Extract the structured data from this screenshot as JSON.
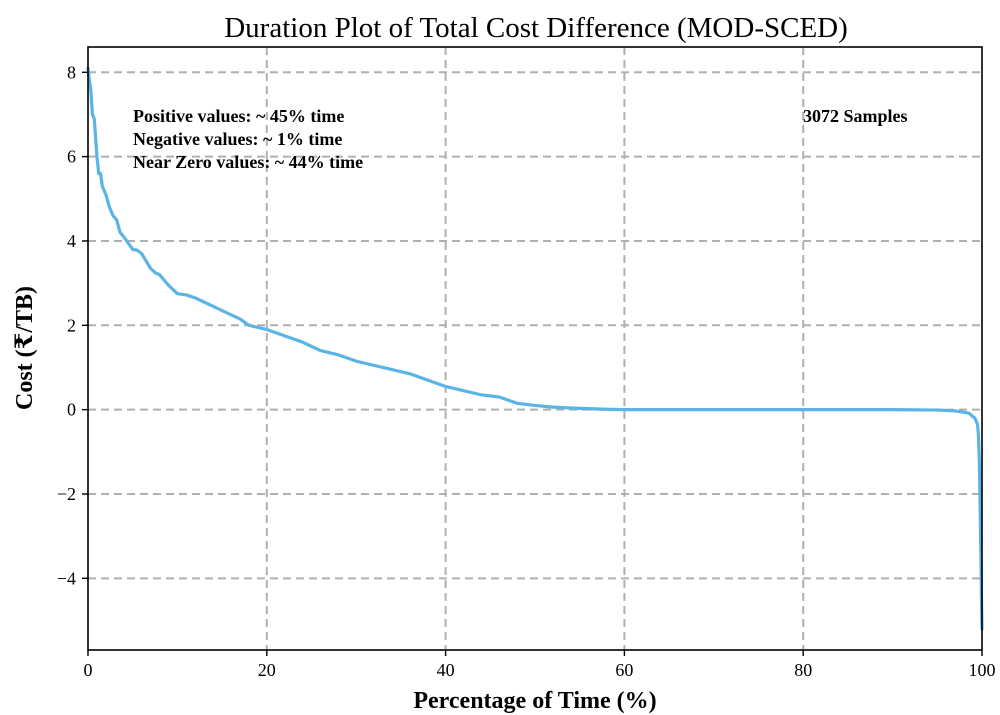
{
  "chart_data": {
    "type": "line",
    "title": "Duration Plot of Total Cost Difference (MOD-SCED)",
    "xlabel": "Percentage of Time (%)",
    "ylabel": "Cost (₹/TB)",
    "xlim": [
      0,
      100
    ],
    "ylim": [
      -5.7,
      8.6
    ],
    "xticks": [
      0,
      20,
      40,
      60,
      80,
      100
    ],
    "yticks": [
      -4,
      -2,
      0,
      2,
      4,
      6,
      8
    ],
    "xtick_labels": [
      "0",
      "20",
      "40",
      "60",
      "80",
      "100"
    ],
    "ytick_labels": [
      "−4",
      "−2",
      "0",
      "2",
      "4",
      "6",
      "8"
    ],
    "grid": true,
    "annotations": [
      "Positive values: ~ 45% time",
      "Negative values: ~ 1% time",
      "Near Zero values: ~ 44% time"
    ],
    "samples_label": "3072 Samples",
    "series": [
      {
        "color": "#5ab4e5",
        "x": [
          0,
          0.1,
          0.3,
          0.5,
          0.7,
          1.0,
          1.2,
          1.4,
          1.6,
          2.0,
          2.4,
          2.8,
          3.2,
          3.6,
          4.0,
          4.5,
          5.0,
          5.5,
          6.0,
          7.0,
          7.5,
          8.0,
          9.0,
          10.0,
          11.0,
          12.0,
          13.0,
          14.0,
          15.0,
          16.0,
          17.0,
          18.0,
          20.0,
          22.0,
          24.0,
          26.0,
          28.0,
          30.0,
          32.0,
          34.0,
          36.0,
          38.0,
          40.0,
          42.0,
          44.0,
          46.0,
          48.0,
          50.0,
          52.0,
          55.0,
          58.0,
          60.0,
          65.0,
          70.0,
          75.0,
          80.0,
          85.0,
          90.0,
          95.0,
          97.0,
          98.5,
          99.2,
          99.5,
          99.6,
          99.7,
          99.8,
          99.9,
          99.95,
          100.0
        ],
        "y": [
          8.1,
          7.9,
          7.6,
          7.0,
          6.9,
          6.0,
          5.6,
          5.6,
          5.3,
          5.1,
          4.8,
          4.6,
          4.5,
          4.2,
          4.1,
          3.95,
          3.8,
          3.78,
          3.7,
          3.35,
          3.25,
          3.2,
          2.95,
          2.75,
          2.72,
          2.65,
          2.55,
          2.45,
          2.35,
          2.25,
          2.15,
          2.0,
          1.9,
          1.75,
          1.6,
          1.4,
          1.3,
          1.15,
          1.05,
          0.95,
          0.85,
          0.7,
          0.55,
          0.45,
          0.35,
          0.3,
          0.15,
          0.1,
          0.06,
          0.03,
          0.01,
          0.0,
          0.0,
          0.0,
          0.0,
          0.0,
          0.0,
          0.0,
          -0.01,
          -0.03,
          -0.08,
          -0.2,
          -0.35,
          -0.6,
          -1.2,
          -2.4,
          -3.8,
          -4.6,
          -5.2
        ]
      }
    ]
  }
}
